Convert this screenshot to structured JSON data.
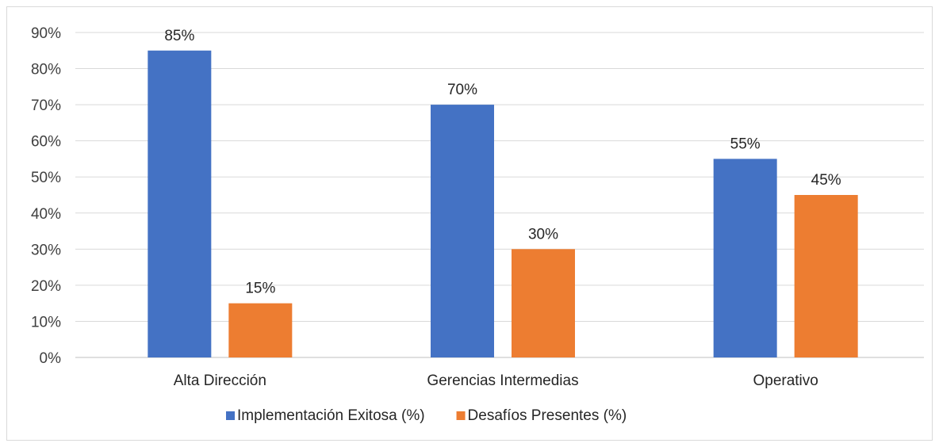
{
  "chart_data": {
    "type": "bar",
    "categories": [
      "Alta Dirección",
      "Gerencias Intermedias",
      "Operativo"
    ],
    "series": [
      {
        "name": "Implementación Exitosa (%)",
        "values": [
          85,
          70,
          55
        ],
        "color": "#4472c4"
      },
      {
        "name": "Desafíos Presentes (%)",
        "values": [
          15,
          30,
          45
        ],
        "color": "#ed7d31"
      }
    ],
    "ylim": [
      0,
      90
    ],
    "yticks": [
      "0%",
      "10%",
      "20%",
      "30%",
      "40%",
      "50%",
      "60%",
      "70%",
      "80%",
      "90%"
    ],
    "data_labels": [
      [
        "85%",
        "70%",
        "55%"
      ],
      [
        "15%",
        "30%",
        "45%"
      ]
    ],
    "grid": true,
    "legend_position": "bottom"
  }
}
